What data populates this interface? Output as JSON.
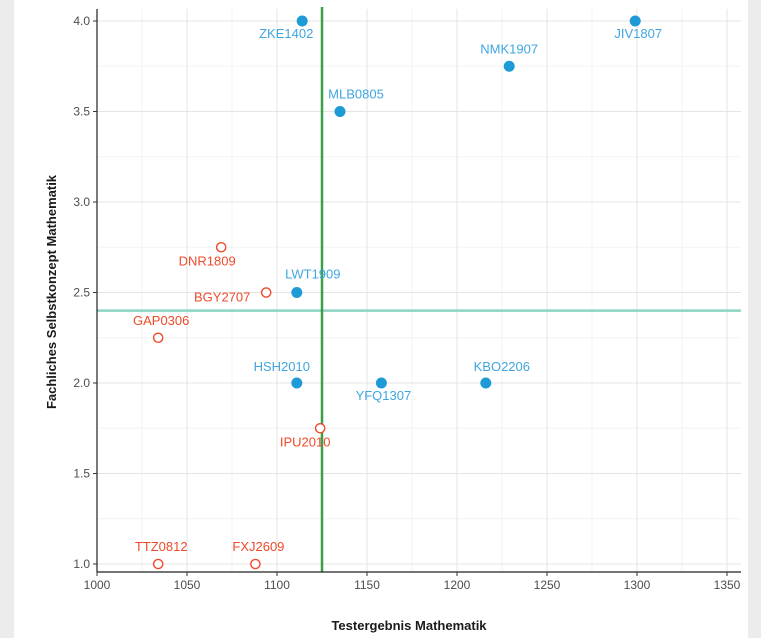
{
  "chart_data": {
    "type": "scatter",
    "xlabel": "Testergebnis Mathematik",
    "ylabel": "Fachliches Selbstkonzept Mathematik",
    "xlim": [
      1000,
      1350
    ],
    "ylim": [
      1.0,
      4.0
    ],
    "x_ticks": [
      "1000",
      "1050",
      "1100",
      "1150",
      "1200",
      "1250",
      "1300",
      "1350"
    ],
    "y_ticks": [
      "1.0",
      "1.5",
      "2.0",
      "2.5",
      "3.0",
      "3.5",
      "4.0"
    ],
    "grid": true,
    "reference_lines": {
      "vertical_x": 1125,
      "horizontal_y": 2.4
    },
    "colors": {
      "filled": "#1e9ad6",
      "open": "#f04a2d",
      "filled_label": "#3ea6e0",
      "open_label": "#ee4a2a",
      "vline": "#3aa047",
      "hline": "#8fd3c6"
    },
    "points": [
      {
        "label": "ZKE1402",
        "x": 1114,
        "y": 4.0,
        "style": "filled"
      },
      {
        "label": "JIV1807",
        "x": 1299,
        "y": 4.0,
        "style": "filled"
      },
      {
        "label": "NMK1907",
        "x": 1229,
        "y": 3.75,
        "style": "filled"
      },
      {
        "label": "MLB0805",
        "x": 1135,
        "y": 3.5,
        "style": "filled"
      },
      {
        "label": "LWT1909",
        "x": 1111,
        "y": 2.5,
        "style": "filled"
      },
      {
        "label": "HSH2010",
        "x": 1111,
        "y": 2.0,
        "style": "filled"
      },
      {
        "label": "YFQ1307",
        "x": 1158,
        "y": 2.0,
        "style": "filled"
      },
      {
        "label": "KBO2206",
        "x": 1216,
        "y": 2.0,
        "style": "filled"
      },
      {
        "label": "DNR1809",
        "x": 1069,
        "y": 2.75,
        "style": "open"
      },
      {
        "label": "BGY2707",
        "x": 1094,
        "y": 2.5,
        "style": "open"
      },
      {
        "label": "GAP0306",
        "x": 1034,
        "y": 2.25,
        "style": "open"
      },
      {
        "label": "IPU2010",
        "x": 1124,
        "y": 1.75,
        "style": "open"
      },
      {
        "label": "TTZ0812",
        "x": 1034,
        "y": 1.0,
        "style": "open"
      },
      {
        "label": "FXJ2609",
        "x": 1088,
        "y": 1.0,
        "style": "open"
      }
    ]
  }
}
